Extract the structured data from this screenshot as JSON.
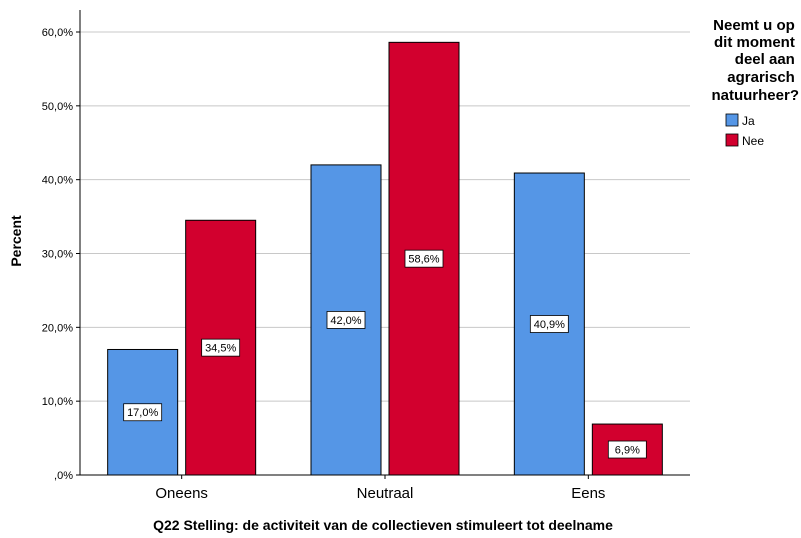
{
  "chart_data": {
    "type": "bar",
    "categories": [
      "Oneens",
      "Neutraal",
      "Eens"
    ],
    "series": [
      {
        "name": "Ja",
        "values": [
          17.0,
          42.0,
          40.9
        ],
        "labels": [
          "17,0%",
          "42,0%",
          "40,9%"
        ],
        "color": "#5596e6"
      },
      {
        "name": "Nee",
        "values": [
          34.5,
          58.6,
          6.9
        ],
        "labels": [
          "34,5%",
          "58,6%",
          "6,9%"
        ],
        "color": "#d2002e"
      }
    ],
    "xlabel": "Q22 Stelling: de activiteit van de collectieven stimuleert tot deelname",
    "ylabel": "Percent",
    "ylim": [
      0,
      60
    ],
    "yticks": [
      0,
      10,
      20,
      30,
      40,
      50,
      60
    ],
    "ytick_labels": [
      ",0%",
      "10,0%",
      "20,0%",
      "30,0%",
      "40,0%",
      "50,0%",
      "60,0%"
    ],
    "grid": true,
    "legend": {
      "title_lines": [
        "Neemt u op",
        "dit moment",
        "deel aan",
        "agrarisch",
        "natuurheer?"
      ],
      "placement": "right"
    }
  }
}
